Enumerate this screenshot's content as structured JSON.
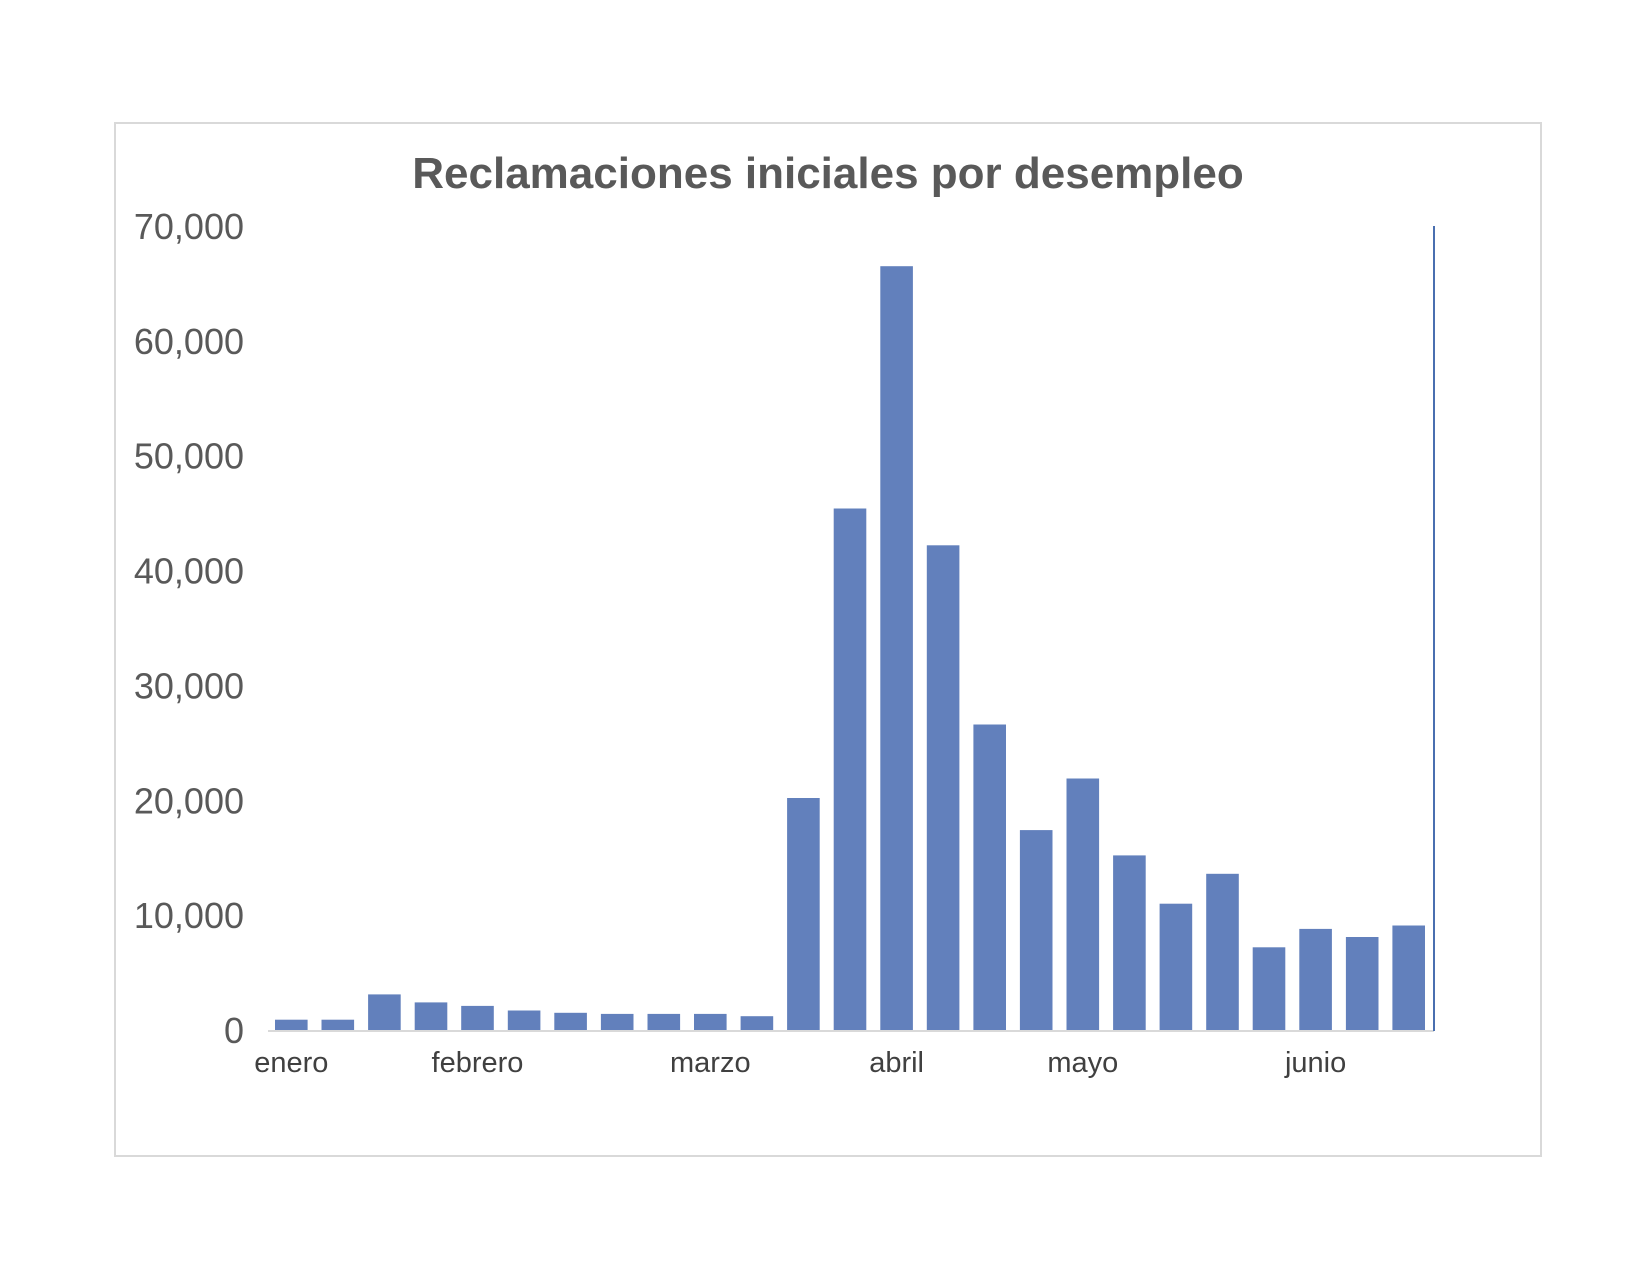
{
  "chart_data": {
    "type": "bar",
    "title": "Reclamaciones iniciales por desempleo",
    "xlabel": "",
    "ylabel": "",
    "ylim": [
      0,
      70000
    ],
    "yticks": [
      "0",
      "10,000",
      "20,000",
      "30,000",
      "40,000",
      "50,000",
      "60,000",
      "70,000"
    ],
    "ytick_values": [
      0,
      10000,
      20000,
      30000,
      40000,
      50000,
      60000,
      70000
    ],
    "month_labels": [
      {
        "label": "enero",
        "bar_index": 0.5
      },
      {
        "label": "febrero",
        "bar_index": 4.5
      },
      {
        "label": "marzo",
        "bar_index": 9.5
      },
      {
        "label": "abril",
        "bar_index": 13.5
      },
      {
        "label": "mayo",
        "bar_index": 17.5
      },
      {
        "label": "junio",
        "bar_index": 22.5
      }
    ],
    "values": [
      900,
      900,
      3100,
      2400,
      2100,
      1700,
      1500,
      1400,
      1400,
      1400,
      1200,
      20200,
      45400,
      66500,
      42200,
      26600,
      17400,
      21900,
      15200,
      11000,
      13600,
      7200,
      8800,
      8100,
      9100
    ],
    "bar_color": "#6280bc",
    "axis_color": "#d9d9d9",
    "right_line_color": "#4a6fb0",
    "grid": false,
    "legend": "none"
  }
}
